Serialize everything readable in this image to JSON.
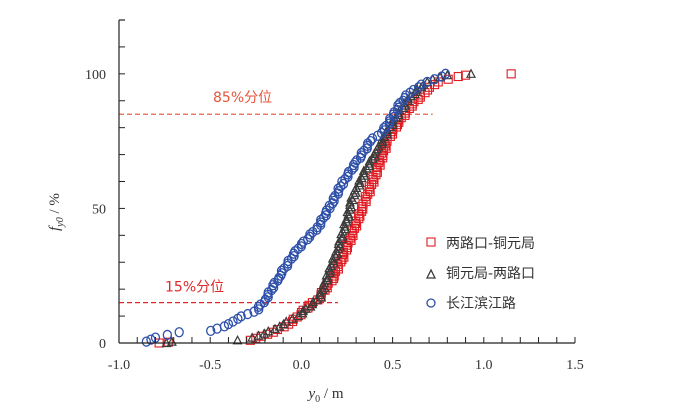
{
  "chart_data": {
    "type": "scatter",
    "title": "",
    "xlabel": "y0 / m",
    "xlabel_main": "y",
    "xlabel_sub": "0",
    "xlabel_unit": " / m",
    "ylabel": "f_y0 / %",
    "ylabel_main": "f",
    "ylabel_sub": "y0",
    "ylabel_unit": " / %",
    "xlim": [
      -1.0,
      1.5
    ],
    "ylim": [
      0,
      120
    ],
    "x_major_ticks": [
      -1.0,
      -0.5,
      0.0,
      0.5,
      1.0,
      1.5
    ],
    "x_tick_labels": [
      "-1.0",
      "-0.5",
      "0.0",
      "0.5",
      "1.0",
      "1.5"
    ],
    "x_minor_step": 0.1,
    "y_major_ticks": [
      0,
      50,
      100
    ],
    "y_tick_labels": [
      "0",
      "50",
      "100"
    ],
    "y_minor_step": 10,
    "grid": false,
    "legend_position": "right-center",
    "annotations": [
      {
        "text": "85%分位",
        "y": 85,
        "x_end": 0.72,
        "color": "#e5553a"
      },
      {
        "text": "15%分位",
        "y": 15,
        "x_end": 0.2,
        "color": "#e0282a"
      }
    ],
    "series": [
      {
        "name": "两路口-铜元局",
        "marker": "square",
        "color": "#e11b22",
        "anchors": [
          [
            -0.78,
            0
          ],
          [
            -0.73,
            0.3
          ],
          [
            -0.28,
            1
          ],
          [
            -0.22,
            2.5
          ],
          [
            -0.15,
            4
          ],
          [
            -0.05,
            8
          ],
          [
            0.03,
            13
          ],
          [
            0.1,
            17
          ],
          [
            0.17,
            24
          ],
          [
            0.22,
            31
          ],
          [
            0.27,
            39
          ],
          [
            0.32,
            48
          ],
          [
            0.38,
            58
          ],
          [
            0.43,
            67
          ],
          [
            0.47,
            75
          ],
          [
            0.53,
            82
          ],
          [
            0.6,
            88
          ],
          [
            0.67,
            93
          ],
          [
            0.75,
            97
          ],
          [
            0.86,
            99
          ],
          [
            0.9,
            99.5
          ],
          [
            1.15,
            100
          ]
        ]
      },
      {
        "name": "铜元局-两路口",
        "marker": "triangle",
        "color": "#3a3a3a",
        "anchors": [
          [
            -0.74,
            0
          ],
          [
            -0.71,
            0.5
          ],
          [
            -0.35,
            1
          ],
          [
            -0.27,
            2
          ],
          [
            -0.2,
            3.5
          ],
          [
            -0.1,
            7
          ],
          [
            0.0,
            11
          ],
          [
            0.1,
            17
          ],
          [
            0.15,
            26
          ],
          [
            0.2,
            35
          ],
          [
            0.25,
            46
          ],
          [
            0.28,
            54
          ],
          [
            0.35,
            64
          ],
          [
            0.42,
            72
          ],
          [
            0.5,
            82
          ],
          [
            0.58,
            90
          ],
          [
            0.65,
            95
          ],
          [
            0.72,
            98
          ],
          [
            0.8,
            99.5
          ],
          [
            0.93,
            100
          ]
        ]
      },
      {
        "name": "长江滨江路",
        "marker": "circle",
        "color": "#2d4fa8",
        "anchors": [
          [
            -0.85,
            0.5
          ],
          [
            -0.8,
            2
          ],
          [
            -0.67,
            4
          ],
          [
            -0.49,
            4.5
          ],
          [
            -0.4,
            7
          ],
          [
            -0.35,
            9
          ],
          [
            -0.24,
            12.5
          ],
          [
            -0.19,
            17
          ],
          [
            -0.12,
            25
          ],
          [
            -0.02,
            35
          ],
          [
            0.09,
            43
          ],
          [
            0.16,
            51
          ],
          [
            0.23,
            60
          ],
          [
            0.3,
            67
          ],
          [
            0.38,
            75
          ],
          [
            0.45,
            79
          ],
          [
            0.5,
            84
          ],
          [
            0.55,
            90
          ],
          [
            0.61,
            94
          ],
          [
            0.69,
            97
          ],
          [
            0.77,
            99
          ],
          [
            0.79,
            100
          ]
        ]
      }
    ]
  }
}
